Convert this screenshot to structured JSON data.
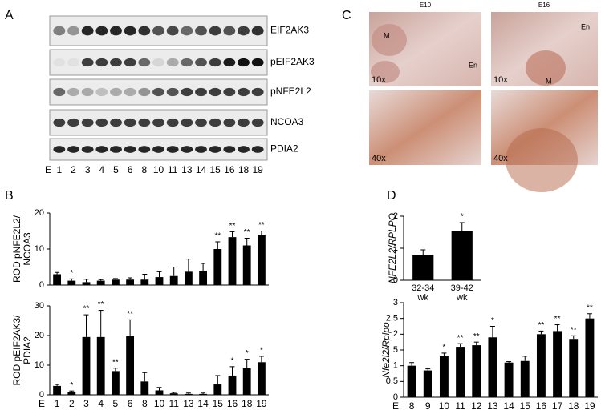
{
  "panel_labels": [
    "A",
    "B",
    "C",
    "D"
  ],
  "blot": {
    "rows": [
      "EIF2AK3",
      "pEIF2AK3",
      "pNFE2L2",
      "NCOA3",
      "PDIA2"
    ],
    "prefix": "E",
    "lanes": [
      "1",
      "2",
      "3",
      "4",
      "5",
      "6",
      "8",
      "10",
      "11",
      "13",
      "14",
      "15",
      "16",
      "18",
      "19"
    ]
  },
  "micrographs": {
    "columns": [
      "E10",
      "E16"
    ],
    "magnifications": [
      "10x",
      "10x",
      "40x",
      "40x"
    ],
    "region_labels": [
      "M",
      "En",
      "En",
      "M"
    ]
  },
  "chart_data": [
    {
      "type": "bar",
      "y_label": [
        "ROD pNFE2L2/",
        "NCOA3"
      ],
      "color": "#000000",
      "values": [
        3,
        1.2,
        0.8,
        1.2,
        1.5,
        1.5,
        1.5,
        2.2,
        2.5,
        3.7,
        4,
        10,
        13.3,
        11,
        14
      ],
      "errors": [
        0.5,
        0.5,
        0.8,
        0.3,
        0.3,
        0.5,
        1.5,
        1.5,
        2.5,
        3.5,
        2,
        2,
        1.5,
        2,
        1
      ],
      "annotations": [
        null,
        "*",
        null,
        null,
        null,
        null,
        null,
        null,
        null,
        null,
        null,
        "**",
        "**",
        "**",
        "**"
      ],
      "ylim": [
        0,
        20
      ],
      "yticks": [
        0,
        10,
        20
      ]
    },
    {
      "type": "bar",
      "y_label": [
        "ROD pEIF2AK3/",
        "PDIA2"
      ],
      "color": "#000000",
      "x_label": "E",
      "categories": [
        "1",
        "2",
        "3",
        "4",
        "5",
        "6",
        "8",
        "10",
        "11",
        "13",
        "14",
        "15",
        "16",
        "18",
        "19"
      ],
      "values": [
        3,
        1,
        19.5,
        19.5,
        8,
        19.8,
        4.5,
        1.5,
        0.5,
        0.3,
        0.3,
        3.5,
        6.5,
        9,
        11
      ],
      "errors": [
        0.5,
        0.3,
        7.5,
        9,
        1,
        5.5,
        3,
        1,
        0.3,
        0.3,
        0.3,
        3,
        3,
        3,
        2
      ],
      "annotations": [
        null,
        "*",
        "**",
        "**",
        "**",
        "**",
        null,
        null,
        null,
        null,
        null,
        null,
        "*",
        "*",
        "*"
      ],
      "ylim": [
        0,
        30
      ],
      "yticks": [
        0,
        10,
        20,
        30
      ]
    },
    {
      "type": "bar",
      "y_label": [
        "NFE2L2/RPLPO"
      ],
      "y_label_italic": true,
      "color": "#000000",
      "categories": [
        [
          "32-34",
          "wk"
        ],
        [
          "39-42",
          "wk"
        ]
      ],
      "values": [
        0.8,
        1.55
      ],
      "errors": [
        0.15,
        0.25
      ],
      "annotations": [
        null,
        "*"
      ],
      "ylim": [
        0,
        2
      ],
      "yticks": [
        0,
        1,
        2
      ]
    },
    {
      "type": "bar",
      "y_label": [
        "Nfe2l2/Rplpo"
      ],
      "y_label_italic": true,
      "color": "#000000",
      "x_label": "E",
      "categories": [
        "8",
        "9",
        "10",
        "11",
        "12",
        "13",
        "14",
        "15",
        "16",
        "17",
        "18",
        "19"
      ],
      "values": [
        1.0,
        0.85,
        1.3,
        1.6,
        1.65,
        1.9,
        1.1,
        1.15,
        2.0,
        2.1,
        1.85,
        2.5
      ],
      "errors": [
        0.1,
        0.05,
        0.1,
        0.1,
        0.1,
        0.35,
        0.03,
        0.15,
        0.1,
        0.2,
        0.1,
        0.15
      ],
      "annotations": [
        null,
        null,
        "*",
        "**",
        "**",
        "*",
        null,
        null,
        "**",
        "**",
        "**",
        "**"
      ],
      "ylim": [
        0,
        3
      ],
      "yticks": [
        0,
        0.5,
        1,
        1.5,
        2,
        2.5,
        3
      ]
    }
  ]
}
